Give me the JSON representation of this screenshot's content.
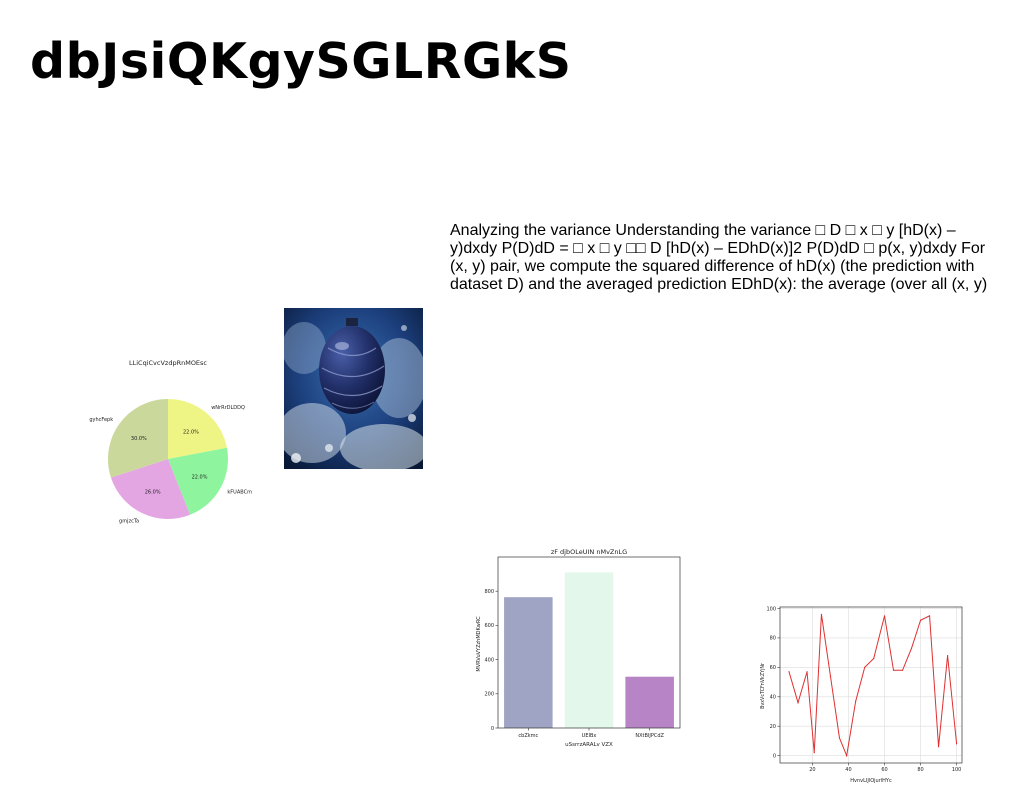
{
  "slide": {
    "title": "dbJsiQKgySGLRGkS",
    "body": "Analyzing the variance Understanding the variance □ D □ x □ y [hD(x) – y)dxdy P(D)dD = □ x □ y □□ D [hD(x) – EDhD(x)]2 P(D)dD □ p(x, y)dxdy For (x, y) pair, we compute the squared difference of hD(x) (the prediction with dataset D) and the averaged prediction EDhD(x): the average (over all (x, y)"
  },
  "chart_data": [
    {
      "type": "pie",
      "title": "LLiCqiCvcVzdpRnMOEsc",
      "labels": [
        "wNrRrDLDDQ",
        "kFUABCm",
        "gmjzcTa",
        "gyhcFepk"
      ],
      "values": [
        22.0,
        22.0,
        26.0,
        30.0
      ],
      "value_labels": [
        "22.0%",
        "22.0%",
        "26.0%",
        "30.0%"
      ],
      "colors": [
        "#eff584",
        "#8ef59e",
        "#e3a6e2",
        "#cad99b"
      ],
      "start_angle_deg": 90,
      "direction": "clockwise"
    },
    {
      "type": "bar",
      "title": "zF djbOLeUIN nMvZnLG",
      "xlabel": "uSsrrzARALv VZX",
      "ylabel": "MVRVuVYZzhMDKwRC",
      "categories": [
        "cbZkmc",
        "UEIBx",
        "NXtBIJPCdZ"
      ],
      "values": [
        765,
        910,
        300
      ],
      "colors": [
        "#a0a4c4",
        "#e3f8ea",
        "#b785c6"
      ],
      "ylim": [
        0,
        1000
      ],
      "yticks": [
        0,
        200,
        400,
        600,
        800
      ],
      "grid": false
    },
    {
      "type": "line",
      "title": "",
      "xlabel": "HvnvLIJlOjurlHYc",
      "ylabel": "BvxVcTCFnVkZYjNr",
      "color": "#e03030",
      "x": [
        7,
        12,
        17,
        21,
        25,
        30,
        35,
        39,
        44,
        49,
        54,
        60,
        65,
        70,
        75,
        80,
        85,
        90,
        95,
        100
      ],
      "y": [
        57,
        36,
        57,
        2,
        96,
        54,
        12,
        0,
        37,
        60,
        66,
        95,
        58,
        58,
        73,
        92,
        95,
        6,
        68,
        8
      ],
      "xlim": [
        2,
        103
      ],
      "ylim": [
        -5,
        101
      ],
      "xticks": [
        20,
        40,
        60,
        80,
        100
      ],
      "yticks": [
        0,
        20,
        40,
        60,
        80,
        100
      ],
      "grid": true
    }
  ]
}
